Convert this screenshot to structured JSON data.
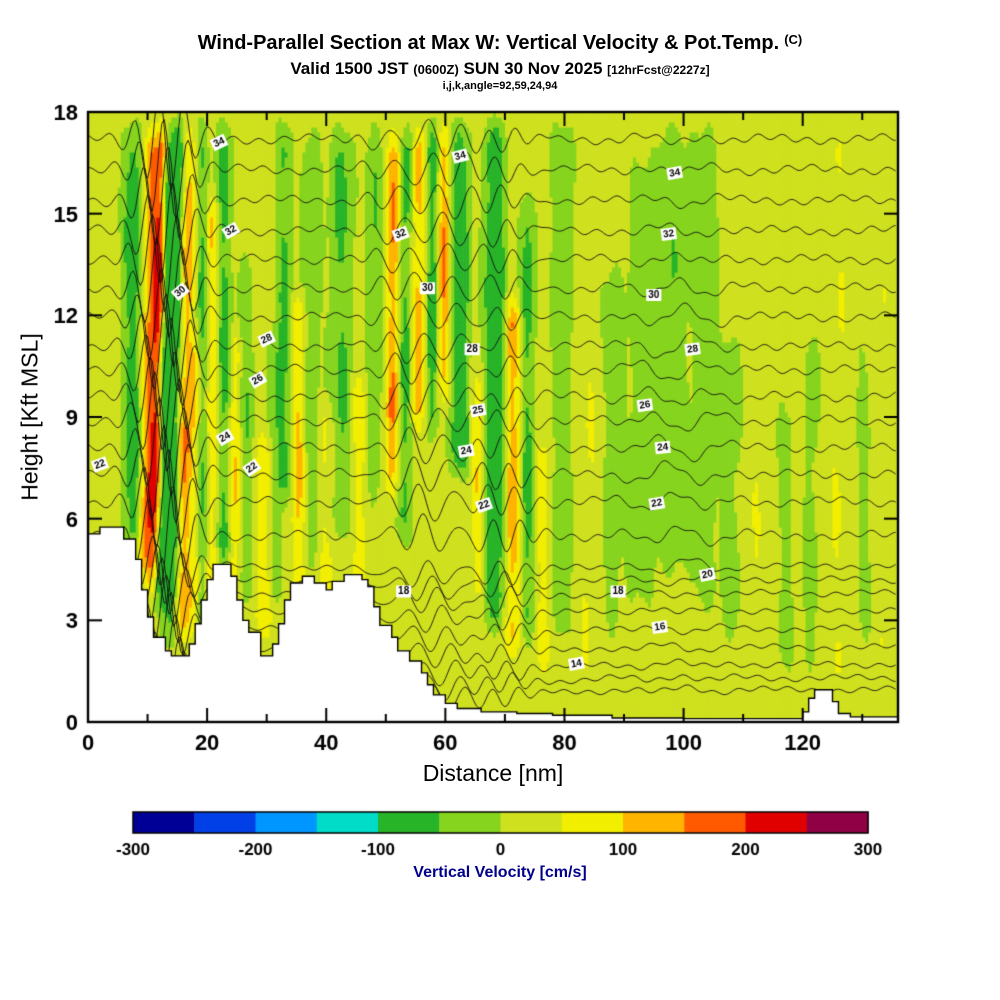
{
  "header": {
    "title_main": "Wind-Parallel Section at Max W: Vertical Velocity & Pot.Temp.",
    "title_unit": "(C)",
    "subtitle_prefix": "Valid 1500 JST ",
    "subtitle_zulu": "(0600Z)",
    "subtitle_date": " SUN 30 Nov 2025 ",
    "subtitle_fcst": "[12hrFcst@2227z]",
    "subtitle_ijk": "i,j,k,angle=92,59,24,94"
  },
  "chart_data": {
    "type": "heatmap",
    "title": "Wind-Parallel Section at Max W: Vertical Velocity & Pot.Temp. (C)",
    "subtitle": "Valid 1500 JST (0600Z) SUN 30 Nov 2025 [12hrFcst@2227z]",
    "grid_info": "i,j,k,angle=92,59,24,94",
    "x_axis": {
      "label": "Distance [nm]",
      "range": [
        0,
        136
      ],
      "major_ticks": [
        0,
        20,
        40,
        60,
        80,
        100,
        120
      ],
      "minor_ticks": [
        10,
        30,
        50,
        70,
        90,
        110,
        130
      ]
    },
    "y_axis": {
      "label": "Height [Kft MSL]",
      "range": [
        0,
        18
      ],
      "major_ticks": [
        0,
        3,
        6,
        9,
        12,
        15,
        18
      ]
    },
    "colorbar": {
      "label": "Vertical Velocity [cm/s]",
      "label_color": "#00008b",
      "range": [
        -300,
        300
      ],
      "bin_size": 50,
      "tick_labels": [
        -300,
        -200,
        -100,
        0,
        100,
        200,
        300
      ],
      "colors": [
        "#000096",
        "#0040e6",
        "#0096ff",
        "#00dcc8",
        "#28b428",
        "#86d41e",
        "#cfe01e",
        "#f2ee00",
        "#ffb400",
        "#ff5a00",
        "#e10000",
        "#8f0045"
      ]
    },
    "contours": {
      "variable": "Potential Temperature [C]",
      "interval": 1,
      "levels": [
        12,
        13,
        14,
        15,
        16,
        17,
        18,
        19,
        20,
        21,
        22,
        23,
        24,
        25,
        26,
        27,
        28,
        29,
        30,
        31,
        32,
        33,
        34,
        35
      ],
      "level_heights_kft": [
        [
          12,
          0.95
        ],
        [
          13,
          1.3
        ],
        [
          14,
          1.7
        ],
        [
          15,
          2.2
        ],
        [
          16,
          2.75
        ],
        [
          17,
          3.3
        ],
        [
          18,
          3.8
        ],
        [
          19,
          4.2
        ],
        [
          20,
          4.6
        ],
        [
          21,
          5.5
        ],
        [
          22,
          6.5
        ],
        [
          23,
          7.3
        ],
        [
          24,
          8.1
        ],
        [
          25,
          8.9
        ],
        [
          26,
          9.6
        ],
        [
          27,
          10.4
        ],
        [
          28,
          11.1
        ],
        [
          29,
          11.95
        ],
        [
          30,
          12.8
        ],
        [
          31,
          13.65
        ],
        [
          32,
          14.5
        ],
        [
          33,
          15.4
        ],
        [
          34,
          16.3
        ],
        [
          35,
          17.2
        ]
      ],
      "labels": [
        [
          22,
          2,
          7.6,
          -20
        ],
        [
          30,
          15.5,
          12.7,
          -40
        ],
        [
          34,
          22,
          17.1,
          -25
        ],
        [
          32,
          24,
          14.5,
          -30
        ],
        [
          28,
          30,
          11.3,
          -25
        ],
        [
          26,
          28.5,
          10.1,
          -30
        ],
        [
          24,
          23,
          8.4,
          -30
        ],
        [
          22,
          27.5,
          7.5,
          -35
        ],
        [
          18,
          53,
          3.85,
          0
        ],
        [
          32,
          52.5,
          14.4,
          -20
        ],
        [
          30,
          57,
          12.8,
          0
        ],
        [
          34,
          62.5,
          16.7,
          -15
        ],
        [
          28,
          64.5,
          11.0,
          0
        ],
        [
          25,
          65.5,
          9.2,
          -10
        ],
        [
          24,
          63.5,
          8.0,
          -10
        ],
        [
          22,
          66.5,
          6.4,
          -20
        ],
        [
          14,
          82,
          1.72,
          -10
        ],
        [
          18,
          89,
          3.85,
          0
        ],
        [
          16,
          96,
          2.8,
          -8
        ],
        [
          20,
          104,
          4.35,
          -12
        ],
        [
          34,
          98.5,
          16.2,
          -10
        ],
        [
          32,
          97.5,
          14.4,
          -8
        ],
        [
          30,
          95,
          12.6,
          0
        ],
        [
          28,
          101.5,
          11.0,
          -8
        ],
        [
          26,
          93.5,
          9.35,
          -8
        ],
        [
          24,
          96.5,
          8.1,
          -6
        ],
        [
          22,
          95.5,
          6.45,
          -10
        ]
      ]
    },
    "field": {
      "units": "cm/s",
      "background": 15,
      "bands": [
        [
          7.5,
          1.1,
          -120,
          4.5,
          18,
          0
        ],
        [
          9.3,
          0.7,
          120,
          4,
          18,
          0.1
        ],
        [
          10.8,
          0.8,
          255,
          3.5,
          18,
          0.12
        ],
        [
          12.4,
          0.7,
          -140,
          3,
          18,
          0.12
        ],
        [
          14.0,
          0.9,
          -145,
          2,
          18,
          0.1
        ],
        [
          16.0,
          0.8,
          150,
          2,
          18,
          0.08
        ],
        [
          17.8,
          0.7,
          80,
          2,
          12,
          0
        ],
        [
          19.2,
          0.7,
          -90,
          2,
          18,
          0
        ],
        [
          21.0,
          0.8,
          100,
          2,
          16,
          0
        ],
        [
          22.8,
          0.9,
          -110,
          4,
          18,
          0
        ],
        [
          24.6,
          0.8,
          110,
          2.5,
          12,
          0
        ],
        [
          26.5,
          0.9,
          -70,
          3,
          14,
          0
        ],
        [
          29.5,
          1.2,
          80,
          2,
          9,
          0
        ],
        [
          31.5,
          0.8,
          -60,
          3,
          12,
          0
        ],
        [
          33.0,
          0.9,
          -90,
          6,
          18,
          0
        ],
        [
          35.3,
          0.9,
          110,
          2.5,
          13,
          0
        ],
        [
          37.5,
          1.0,
          -60,
          4,
          18,
          0
        ],
        [
          40.0,
          1.2,
          60,
          2,
          10,
          0
        ],
        [
          42.5,
          1.3,
          -85,
          5,
          18,
          0
        ],
        [
          45.5,
          1.0,
          70,
          2,
          11,
          0
        ],
        [
          48.0,
          0.9,
          -70,
          6,
          18,
          0
        ],
        [
          50.8,
          0.8,
          150,
          6,
          18,
          0.05
        ],
        [
          53.0,
          0.8,
          -100,
          5,
          18,
          0.05
        ],
        [
          55.5,
          0.8,
          130,
          8,
          18,
          0
        ],
        [
          57.8,
          0.7,
          -130,
          8,
          18,
          0
        ],
        [
          59.8,
          0.7,
          160,
          9,
          18,
          0
        ],
        [
          62.5,
          1.0,
          -170,
          7,
          18,
          0
        ],
        [
          65.5,
          0.8,
          90,
          3,
          11,
          0
        ],
        [
          68.3,
          1.1,
          -180,
          2.5,
          18,
          0
        ],
        [
          71.3,
          0.9,
          140,
          1.5,
          13,
          0
        ],
        [
          73.8,
          0.8,
          -100,
          2,
          16,
          0
        ],
        [
          76.5,
          1.0,
          70,
          1,
          9,
          0
        ],
        [
          79.5,
          1.3,
          -60,
          2,
          18,
          0
        ],
        [
          84.0,
          1.5,
          40,
          0.5,
          12,
          0
        ],
        [
          88.0,
          1.2,
          -40,
          2,
          14,
          0
        ],
        [
          93.0,
          1.6,
          -55,
          3,
          17,
          0
        ],
        [
          98.0,
          1.8,
          -65,
          4,
          18,
          0
        ],
        [
          103.5,
          1.4,
          -55,
          3,
          18,
          0
        ],
        [
          108.0,
          1.3,
          -40,
          2,
          12,
          0
        ],
        [
          112.5,
          1.5,
          35,
          0.5,
          16,
          0
        ],
        [
          117.0,
          1.2,
          -30,
          1,
          10,
          0
        ],
        [
          121.5,
          0.9,
          -35,
          1,
          12,
          0
        ],
        [
          126.0,
          1.4,
          40,
          0.5,
          18,
          0
        ],
        [
          130.5,
          1.0,
          -30,
          2,
          13,
          0
        ],
        [
          133.5,
          0.9,
          35,
          1,
          14,
          0
        ]
      ]
    },
    "terrain_profile_nm_kft": [
      [
        0,
        5.55
      ],
      [
        2,
        5.75
      ],
      [
        6,
        5.4
      ],
      [
        8,
        4.8
      ],
      [
        9,
        3.9
      ],
      [
        10,
        3.1
      ],
      [
        11,
        2.5
      ],
      [
        13,
        2.1
      ],
      [
        14,
        1.95
      ],
      [
        17,
        2.3
      ],
      [
        18,
        2.9
      ],
      [
        19,
        3.6
      ],
      [
        20,
        4.2
      ],
      [
        21,
        4.65
      ],
      [
        24,
        4.3
      ],
      [
        25,
        3.6
      ],
      [
        26,
        3.0
      ],
      [
        27,
        2.65
      ],
      [
        29,
        1.95
      ],
      [
        31,
        2.3
      ],
      [
        32,
        2.9
      ],
      [
        33,
        3.6
      ],
      [
        34,
        4.1
      ],
      [
        36,
        4.3
      ],
      [
        38,
        4.1
      ],
      [
        40,
        3.9
      ],
      [
        41,
        4.15
      ],
      [
        43,
        4.35
      ],
      [
        46,
        4.2
      ],
      [
        47,
        4.0
      ],
      [
        48,
        3.4
      ],
      [
        49,
        2.85
      ],
      [
        51,
        2.5
      ],
      [
        52,
        2.1
      ],
      [
        54,
        1.8
      ],
      [
        56,
        1.45
      ],
      [
        57,
        1.1
      ],
      [
        58,
        0.8
      ],
      [
        60,
        0.55
      ],
      [
        62,
        0.4
      ],
      [
        66,
        0.3
      ],
      [
        72,
        0.25
      ],
      [
        78,
        0.2
      ],
      [
        88,
        0.12
      ],
      [
        100,
        0.1
      ],
      [
        118,
        0.1
      ],
      [
        120,
        0.3
      ],
      [
        121,
        0.7
      ],
      [
        122,
        0.95
      ],
      [
        124,
        0.95
      ],
      [
        125,
        0.6
      ],
      [
        126,
        0.25
      ],
      [
        128,
        0.15
      ],
      [
        136,
        0.12
      ]
    ]
  }
}
